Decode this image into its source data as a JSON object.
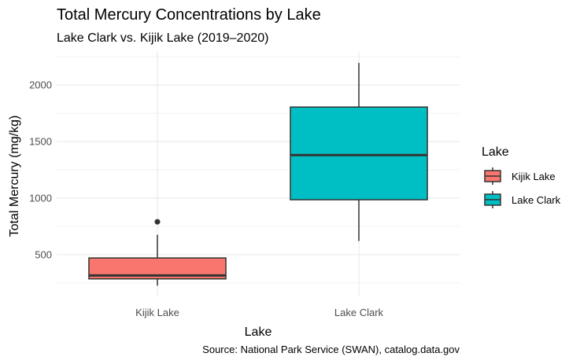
{
  "chart_data": {
    "type": "box",
    "title": "Total Mercury Concentrations by Lake",
    "subtitle": "Lake Clark vs. Kijik Lake (2019–2020)",
    "xlabel": "Lake",
    "ylabel": "Total Mercury (mg/kg)",
    "caption": "Source: National Park Service (SWAN), catalog.data.gov",
    "categories": [
      "Kijik Lake",
      "Lake Clark"
    ],
    "ylim": [
      130,
      2300
    ],
    "yticks": [
      500,
      1000,
      1500,
      2000
    ],
    "grid": true,
    "legend": {
      "title": "Lake",
      "position": "right",
      "entries": [
        "Kijik Lake",
        "Lake Clark"
      ]
    },
    "series": [
      {
        "name": "Kijik Lake",
        "color": "#F8766D",
        "whisker_low": 225,
        "q1": 285,
        "median": 315,
        "q3": 470,
        "whisker_high": 675,
        "outliers": [
          790
        ]
      },
      {
        "name": "Lake Clark",
        "color": "#00BFC4",
        "whisker_low": 620,
        "q1": 985,
        "median": 1380,
        "q3": 1805,
        "whisker_high": 2195,
        "outliers": []
      }
    ]
  }
}
